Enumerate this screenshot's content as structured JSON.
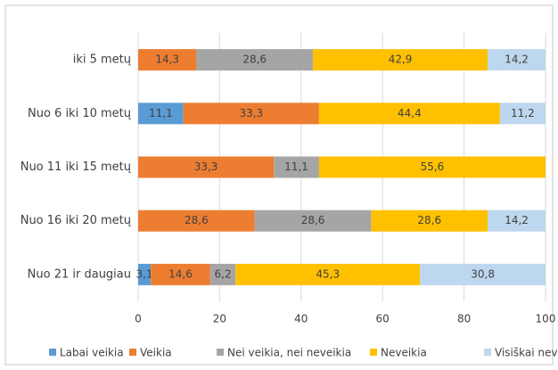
{
  "chart_data": {
    "type": "stacked_bar_horizontal",
    "categories": [
      "iki 5 metų",
      "Nuo 6 iki 10 metų",
      "Nuo 11 iki 15 metų",
      "Nuo 16 iki 20 metų",
      "Nuo 21 ir daugiau"
    ],
    "series": [
      {
        "name": "Labai veikia",
        "color": "#5b9bd5",
        "values": [
          null,
          11.1,
          null,
          null,
          3.1
        ],
        "value_labels": [
          null,
          "11,1",
          null,
          null,
          "3,1"
        ]
      },
      {
        "name": "Veikia",
        "color": "#ed7d31",
        "values": [
          14.3,
          33.3,
          33.3,
          28.6,
          14.6
        ],
        "value_labels": [
          "14,3",
          "33,3",
          "33,3",
          "28,6",
          "14,6"
        ]
      },
      {
        "name": "Nei veikia, nei neveikia",
        "color": "#a5a5a5",
        "values": [
          28.6,
          null,
          11.1,
          28.6,
          6.2
        ],
        "value_labels": [
          "28,6",
          null,
          "11,1",
          "28,6",
          "6,2"
        ]
      },
      {
        "name": "Neveikia",
        "color": "#ffc000",
        "values": [
          42.9,
          44.4,
          55.6,
          28.6,
          45.3
        ],
        "value_labels": [
          "42,9",
          "44,4",
          "55,6",
          "28,6",
          "45,3"
        ]
      },
      {
        "name": "Visiškai neveikia",
        "color": "#bdd7ee",
        "values": [
          14.2,
          11.2,
          null,
          14.2,
          30.8
        ],
        "value_labels": [
          "14,2",
          "11,2",
          null,
          "14,2",
          "30,8"
        ]
      }
    ],
    "xlim": [
      0,
      100
    ],
    "xticks": [
      0,
      20,
      40,
      60,
      80,
      100
    ],
    "grid": true,
    "legend": "bottom"
  }
}
